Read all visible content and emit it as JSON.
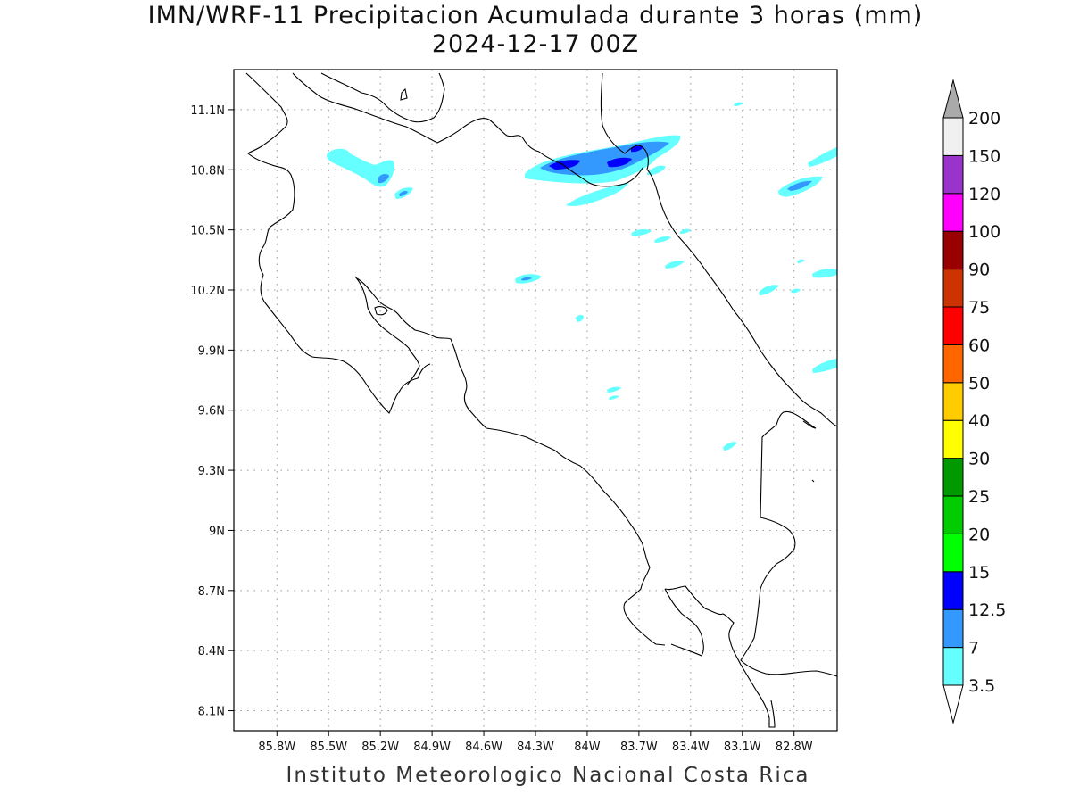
{
  "title": {
    "line1": "IMN/WRF-11 Precipitacion Acumulada durante 3 horas (mm)",
    "line2": "2024-12-17 00Z"
  },
  "footer": "Instituto Meteorologico Nacional Costa Rica",
  "map": {
    "lon_range": [
      -86.05,
      -82.55
    ],
    "lat_range": [
      8.0,
      11.3
    ],
    "lon_ticks": [
      {
        "value": -85.8,
        "label": "85.8W"
      },
      {
        "value": -85.5,
        "label": "85.5W"
      },
      {
        "value": -85.2,
        "label": "85.2W"
      },
      {
        "value": -84.9,
        "label": "84.9W"
      },
      {
        "value": -84.6,
        "label": "84.6W"
      },
      {
        "value": -84.3,
        "label": "84.3W"
      },
      {
        "value": -84.0,
        "label": "84W"
      },
      {
        "value": -83.7,
        "label": "83.7W"
      },
      {
        "value": -83.4,
        "label": "83.4W"
      },
      {
        "value": -83.1,
        "label": "83.1W"
      },
      {
        "value": -82.8,
        "label": "82.8W"
      }
    ],
    "lat_ticks": [
      {
        "value": 11.1,
        "label": "11.1N"
      },
      {
        "value": 10.8,
        "label": "10.8N"
      },
      {
        "value": 10.5,
        "label": "10.5N"
      },
      {
        "value": 10.2,
        "label": "10.2N"
      },
      {
        "value": 9.9,
        "label": "9.9N"
      },
      {
        "value": 9.6,
        "label": "9.6N"
      },
      {
        "value": 9.3,
        "label": "9.3N"
      },
      {
        "value": 9.0,
        "label": "9N"
      },
      {
        "value": 8.7,
        "label": "8.7N"
      },
      {
        "value": 8.4,
        "label": "8.4N"
      },
      {
        "value": 8.1,
        "label": "8.1N"
      }
    ],
    "grid": true
  },
  "colorbar": {
    "bins": [
      {
        "label": "3.5",
        "color": "#66ffff"
      },
      {
        "label": "7",
        "color": "#3399ff"
      },
      {
        "label": "12.5",
        "color": "#0000ff"
      },
      {
        "label": "15",
        "color": "#00ff00"
      },
      {
        "label": "20",
        "color": "#00cc00"
      },
      {
        "label": "25",
        "color": "#009900"
      },
      {
        "label": "30",
        "color": "#ffff00"
      },
      {
        "label": "40",
        "color": "#ffcc00"
      },
      {
        "label": "50",
        "color": "#ff6600"
      },
      {
        "label": "60",
        "color": "#ff0000"
      },
      {
        "label": "75",
        "color": "#cc3300"
      },
      {
        "label": "90",
        "color": "#990000"
      },
      {
        "label": "100",
        "color": "#ff00ff"
      },
      {
        "label": "120",
        "color": "#9933cc"
      },
      {
        "label": "150",
        "color": "#f0f0f0"
      },
      {
        "label": "200",
        "color": "#aaaaaa"
      }
    ]
  },
  "precip_colors": {
    "light": "#66ffff",
    "moderate": "#3399ff",
    "heavy": "#0000ff"
  }
}
